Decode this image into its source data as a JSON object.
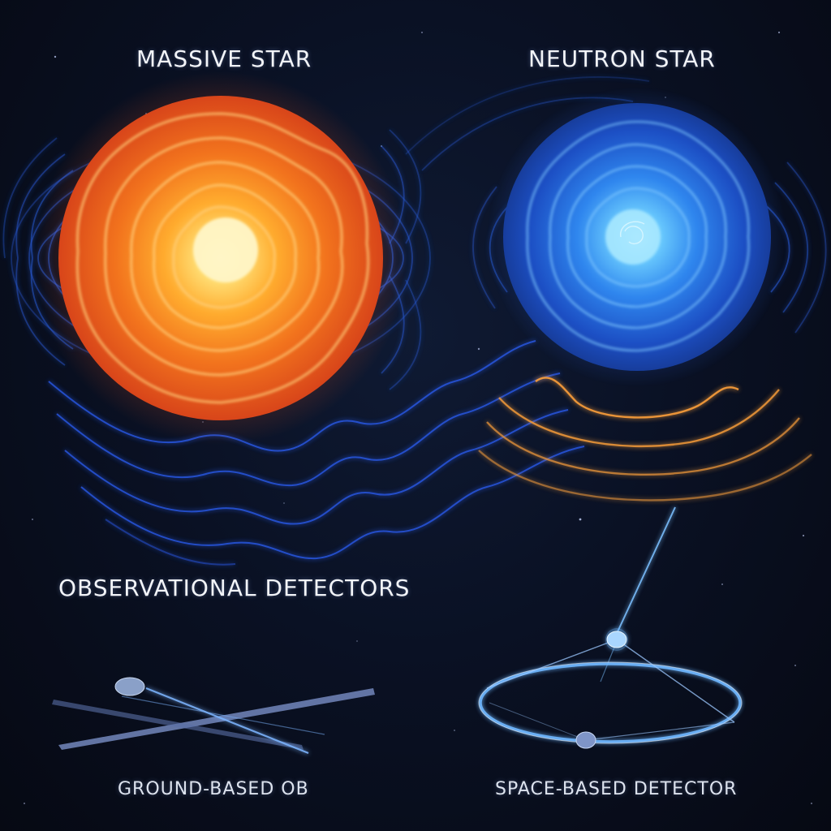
{
  "labels": {
    "massive_star": "MASSIVE STAR",
    "neutron_star": "NEUTRON STAR",
    "observational_detectors": "OBSERVATIONAL DETECTORS",
    "ground_based": "GROUND-BASED OB",
    "space_based": "SPACE-BASED DETECTOR"
  },
  "colors": {
    "background": "#070b17",
    "massive_star_core": "#fff3b0",
    "massive_star_outer": "#e0481a",
    "neutron_star_core": "#9fe4ff",
    "neutron_star_outer": "#1f5fd8",
    "wave_blue": "#2f6bff",
    "wave_orange": "#f29a3a",
    "detector_glow": "#6fb8ff"
  }
}
